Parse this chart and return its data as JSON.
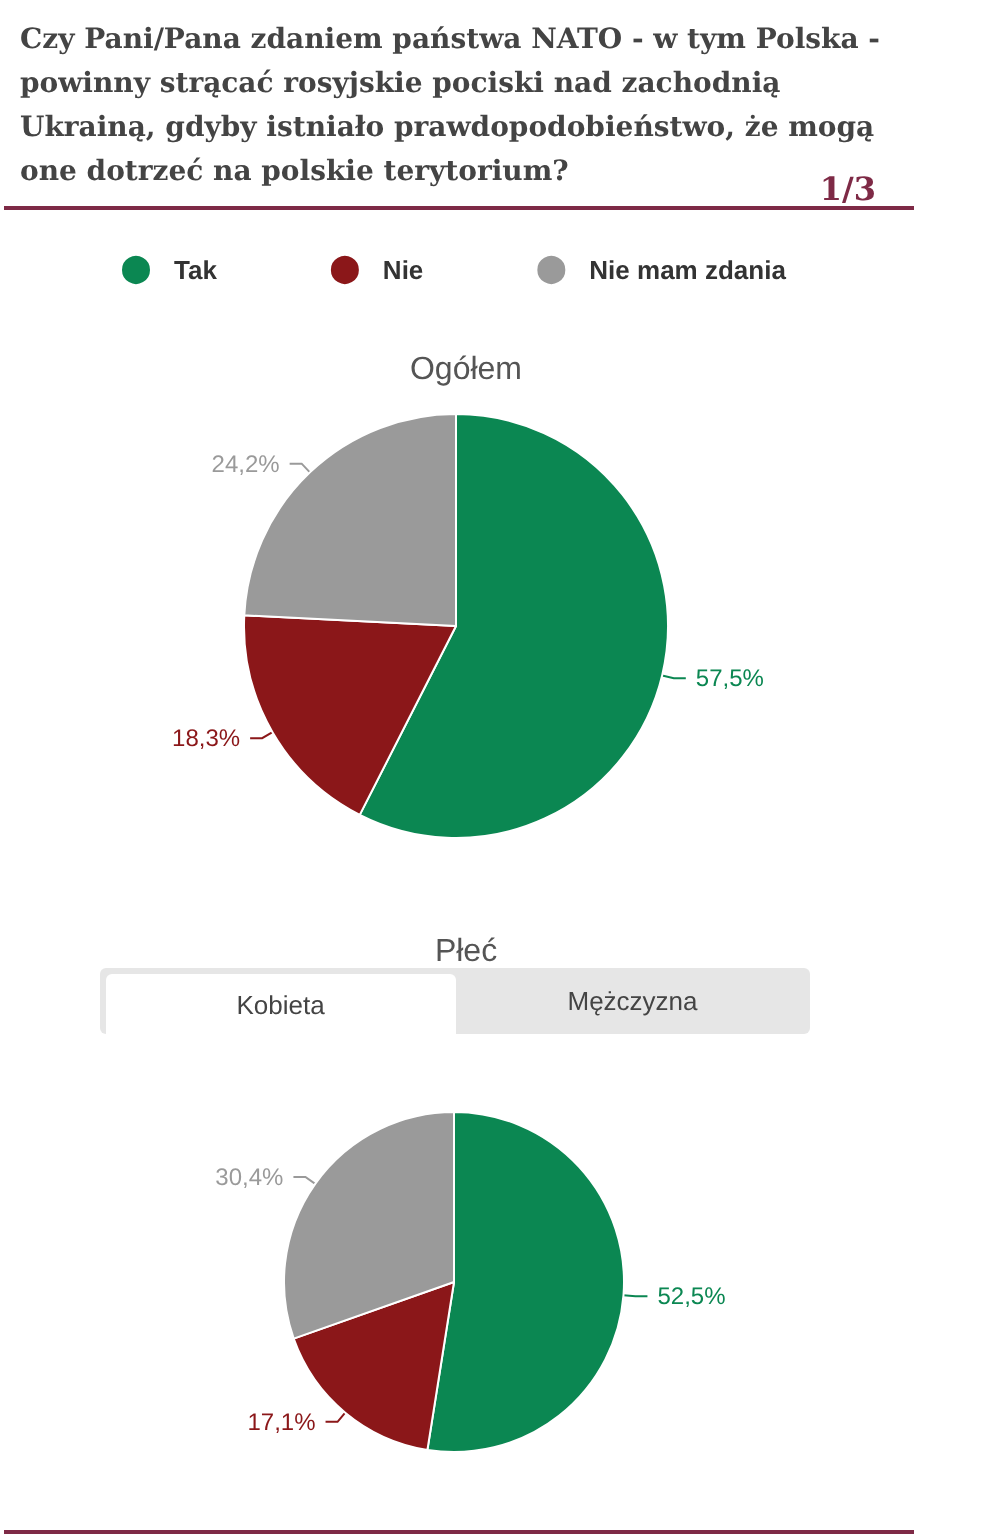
{
  "chart_data": [
    {
      "type": "pie",
      "title": "Czy Pani/Pana zdaniem państwa NATO - w tym Polska - powinny strącać rosyjskie pociski nad zachodnią Ukrainą, gdyby istniało prawdopodobieństwo, że mogą one dotrzeć na polskie terytorium?",
      "subtitle": "Ogółem",
      "categories": [
        "Tak",
        "Nie",
        "Nie mam zdania"
      ],
      "values": [
        57.5,
        18.3,
        24.2
      ],
      "colors": [
        "#0b8752",
        "#8b1719",
        "#9a9a9a"
      ],
      "value_labels": [
        "57,5%",
        "18,3%",
        "24,2%"
      ],
      "legend": "top",
      "annotations": [
        "1/3"
      ]
    },
    {
      "type": "pie",
      "title": "Płeć",
      "categories": [
        null,
        null,
        null
      ],
      "values": [
        52.5,
        17.1,
        30.4
      ],
      "colors": [
        "#0b8752",
        "#8b1719",
        "#9a9a9a"
      ],
      "value_labels": [
        "52,5%",
        "17,1%",
        "30,4%"
      ],
      "annotations": [
        "Kobieta",
        "Mężczyzna"
      ]
    }
  ]
}
